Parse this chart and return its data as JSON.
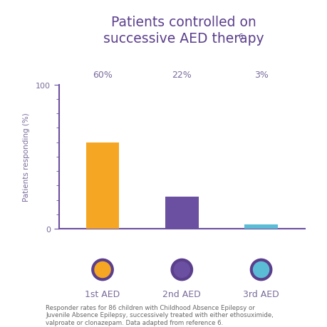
{
  "title_line1": "Patients controlled on",
  "title_line2": "successive AED therapy",
  "title_superscript": "6",
  "categories": [
    "1st AED",
    "2nd AED",
    "3rd AED"
  ],
  "values": [
    60,
    22,
    3
  ],
  "value_labels": [
    "60%",
    "22%",
    "3%"
  ],
  "bar_colors": [
    "#F5A623",
    "#6B4FA0",
    "#5BBCD6"
  ],
  "circle_fill_colors": [
    "#F5A623",
    "#6B4FA0",
    "#5BBCD6"
  ],
  "circle_edge_color": "#5B3F8C",
  "ylabel": "Patients responding (%)",
  "ylim_max": 100,
  "yticks_major": [
    0,
    100
  ],
  "yticks_minor_step": 10,
  "title_color": "#5B3F8C",
  "axis_color": "#6B4FA0",
  "tick_color": "#6B4FA0",
  "label_color": "#7B6B9A",
  "value_label_color": "#7B6B9A",
  "caption": "Responder rates for 86 children with Childhood Absence Epilepsy or\nJuvenile Absence Epilepsy, successively treated with either ethosuximide,\nvalproate or clonazepam. Data adapted from reference 6.",
  "caption_color": "#666666",
  "background_color": "#FFFFFF",
  "bar_width": 0.42,
  "title_fontsize": 13.5,
  "ylabel_fontsize": 7.5,
  "tick_fontsize": 8,
  "value_label_fontsize": 9,
  "caption_fontsize": 6.2,
  "category_fontsize": 9
}
